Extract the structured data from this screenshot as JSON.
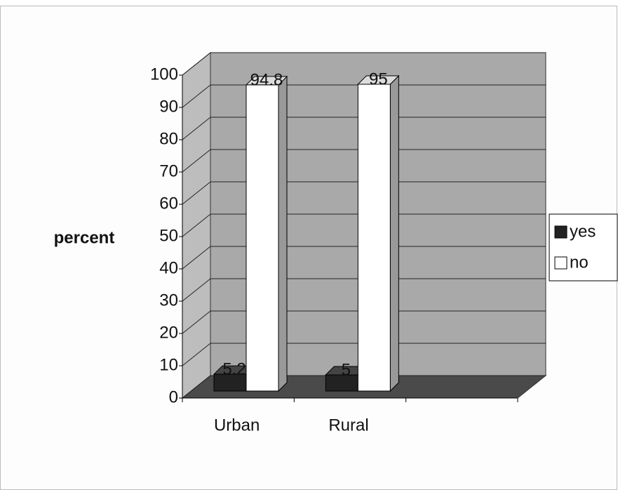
{
  "chart_data": {
    "type": "bar3d",
    "ylabel": "percent",
    "categories": [
      "Urban",
      "Rural",
      null
    ],
    "series": [
      {
        "name": "yes",
        "color": "#222222",
        "values": [
          5.2,
          5,
          null
        ]
      },
      {
        "name": "no",
        "color": "#ffffff",
        "values": [
          94.8,
          95,
          null
        ]
      }
    ],
    "ylim": [
      0,
      100
    ],
    "yticks": [
      0,
      10,
      20,
      30,
      40,
      50,
      60,
      70,
      80,
      90,
      100
    ],
    "grid": true,
    "legend": "right"
  }
}
